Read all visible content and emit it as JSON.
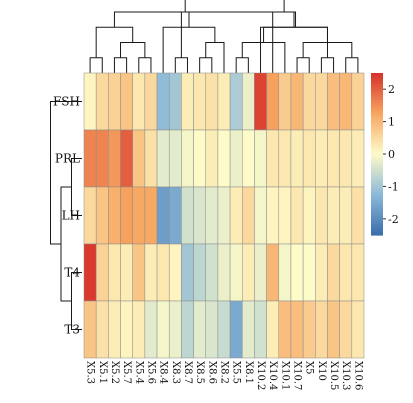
{
  "chart_data": {
    "type": "heatmap",
    "rows": [
      "FSH",
      "PRL",
      "LH",
      "T4",
      "T3"
    ],
    "columns": [
      "X5.3",
      "X5.1",
      "X5.2",
      "X5.7",
      "X5.4",
      "X5.6",
      "X8.4",
      "X8.3",
      "X8.7",
      "X8.5",
      "X8.6",
      "X8.2",
      "X5.5",
      "X8.1",
      "X10.2",
      "X10.4",
      "X10.1",
      "X10.7",
      "X5",
      "X10",
      "X10.5",
      "X10.3",
      "X10.6"
    ],
    "values": [
      [
        0.1,
        0.5,
        0.6,
        0.8,
        0.3,
        0.5,
        -1.2,
        -1.0,
        0.2,
        0.3,
        0.4,
        0.2,
        -0.9,
        -0.2,
        2.3,
        1.3,
        0.7,
        1.0,
        0.5,
        0.5,
        0.9,
        1.0,
        0.6
      ],
      [
        1.6,
        1.6,
        1.4,
        2.0,
        0.8,
        0.4,
        -0.3,
        -0.3,
        -0.1,
        0.0,
        0.2,
        0.0,
        -0.2,
        0.0,
        -0.1,
        0.3,
        0.3,
        0.2,
        0.3,
        0.2,
        0.3,
        0.3,
        0.2
      ],
      [
        0.5,
        0.8,
        1.1,
        1.3,
        1.2,
        1.2,
        -1.7,
        -1.5,
        -0.5,
        -0.4,
        -0.3,
        -0.2,
        0.2,
        0.5,
        -0.1,
        0.1,
        0.1,
        0.3,
        0.1,
        0.3,
        0.2,
        0.2,
        0.4
      ],
      [
        2.4,
        0.6,
        0.3,
        0.2,
        0.8,
        0.2,
        0.3,
        0.1,
        -1.0,
        -0.7,
        -0.5,
        -0.2,
        -0.1,
        0.2,
        -0.2,
        1.0,
        -0.1,
        0.0,
        0.0,
        0.2,
        0.5,
        0.3,
        0.3
      ],
      [
        0.8,
        0.4,
        0.2,
        0.1,
        0.2,
        -0.3,
        -0.1,
        -0.2,
        -0.7,
        -0.3,
        -0.4,
        -0.6,
        -1.5,
        -0.3,
        -0.5,
        0.2,
        0.9,
        0.9,
        0.7,
        0.5,
        0.8,
        0.5,
        0.3
      ]
    ],
    "color_scale": {
      "min": -2.5,
      "max": 2.5,
      "stops": [
        {
          "value": -2.5,
          "color": "#3a6fab"
        },
        {
          "value": -1.25,
          "color": "#8cb9d8"
        },
        {
          "value": 0,
          "color": "#fdfbc8"
        },
        {
          "value": 1.25,
          "color": "#f7a660"
        },
        {
          "value": 2.5,
          "color": "#d7302a"
        }
      ]
    },
    "legend_ticks": [
      2,
      1,
      0,
      -1,
      -2
    ],
    "legend_placement": "right",
    "row_dendrogram": [
      [
        3,
        4
      ],
      [
        1,
        2
      ],
      [
        5,
        6
      ],
      [
        0,
        7
      ]
    ],
    "column_dendrogram": [
      [
        0,
        1
      ],
      [
        2,
        3
      ],
      [
        4,
        5
      ],
      [
        24,
        25
      ],
      [
        23,
        26
      ],
      [
        7,
        8
      ],
      [
        9,
        10
      ],
      [
        29,
        11
      ],
      [
        6,
        30
      ],
      [
        28,
        31
      ],
      [
        12,
        13
      ],
      [
        17,
        18
      ],
      [
        19,
        20
      ],
      [
        16,
        33
      ],
      [
        21,
        22
      ],
      [
        35,
        36
      ],
      [
        34,
        37
      ],
      [
        15,
        38
      ],
      [
        14,
        39
      ],
      [
        32,
        40
      ],
      [
        27,
        41
      ]
    ],
    "grid": true
  }
}
